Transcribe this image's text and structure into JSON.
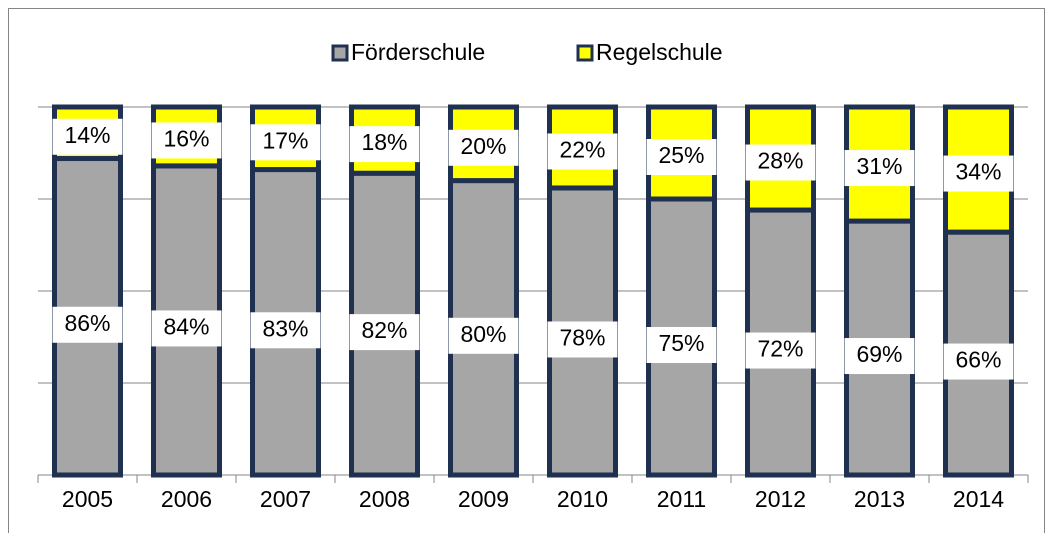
{
  "chart_data": {
    "type": "stacked_bar",
    "categories": [
      "2005",
      "2006",
      "2007",
      "2008",
      "2009",
      "2010",
      "2011",
      "2012",
      "2013",
      "2014"
    ],
    "series": [
      {
        "name": "Förderschule",
        "color": "#a6a6a6",
        "values": [
          86,
          84,
          83,
          82,
          80,
          78,
          75,
          72,
          69,
          66
        ],
        "value_labels": [
          "86%",
          "84%",
          "83%",
          "82%",
          "80%",
          "78%",
          "75%",
          "72%",
          "69%",
          "66%"
        ]
      },
      {
        "name": "Regelschule",
        "color": "#ffff00",
        "values": [
          14,
          16,
          17,
          18,
          20,
          22,
          25,
          28,
          31,
          34
        ],
        "value_labels": [
          "14%",
          "16%",
          "17%",
          "18%",
          "20%",
          "22%",
          "25%",
          "28%",
          "31%",
          "34%"
        ]
      }
    ],
    "ylim": [
      0,
      100
    ],
    "yticks": [
      0,
      25,
      50,
      75,
      100
    ],
    "grid": true,
    "legend": "top"
  }
}
